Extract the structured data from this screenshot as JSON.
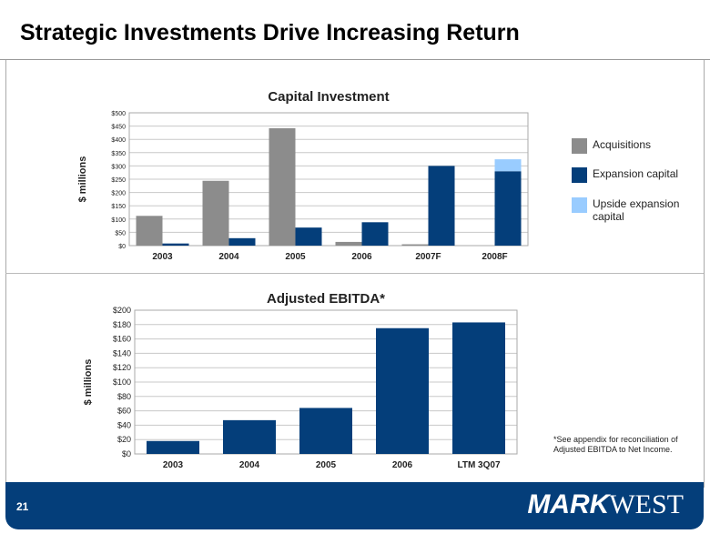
{
  "slide": {
    "title": "Strategic Investments Drive Increasing Return",
    "page_number": "21",
    "logo_bold": "MARK",
    "logo_regular": "WEST",
    "footnote": "*See appendix for reconciliation of Adjusted EBITDA to Net Income."
  },
  "colors": {
    "acquisitions": "#8c8c8c",
    "expansion": "#043e7a",
    "upside": "#99ccff",
    "footer": "#043e7a"
  },
  "chart_data": [
    {
      "type": "bar",
      "title": "Capital Investment",
      "ylabel": "$ millions",
      "ylim": [
        0,
        500
      ],
      "yticks": [
        "$0",
        "$50",
        "$100",
        "$150",
        "$200",
        "$250",
        "$300",
        "$350",
        "$400",
        "$450",
        "$500"
      ],
      "categories": [
        "2003",
        "2004",
        "2005",
        "2006",
        "2007F",
        "2008F"
      ],
      "series": [
        {
          "name": "Acquisitions",
          "values": [
            112,
            244,
            442,
            14,
            5,
            0
          ]
        },
        {
          "name": "Expansion capital",
          "values": [
            8,
            28,
            68,
            88,
            300,
            280
          ]
        },
        {
          "name": "Upside expansion capital",
          "values": [
            0,
            0,
            0,
            0,
            0,
            45
          ],
          "stacked_on": "Expansion capital"
        }
      ],
      "legend": "right"
    },
    {
      "type": "bar",
      "title": "Adjusted EBITDA*",
      "ylabel": "$ millions",
      "ylim": [
        0,
        200
      ],
      "yticks": [
        "$0",
        "$20",
        "$40",
        "$60",
        "$80",
        "$100",
        "$120",
        "$140",
        "$160",
        "$180",
        "$200"
      ],
      "categories": [
        "2003",
        "2004",
        "2005",
        "2006",
        "LTM 3Q07"
      ],
      "values": [
        18,
        47,
        64,
        175,
        183
      ]
    }
  ]
}
